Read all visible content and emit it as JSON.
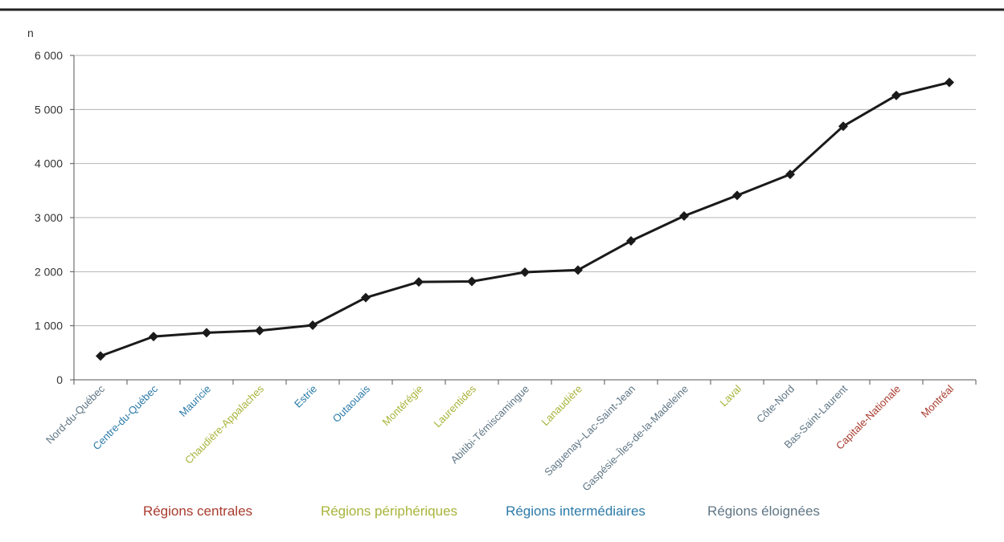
{
  "chart_data": {
    "type": "line",
    "title": "",
    "xlabel": "",
    "ylabel": "n",
    "ylim": [
      0,
      6000
    ],
    "yticks": [
      {
        "value": 0,
        "label": "0"
      },
      {
        "value": 1000,
        "label": "1 000"
      },
      {
        "value": 2000,
        "label": "2 000"
      },
      {
        "value": 3000,
        "label": "3 000"
      },
      {
        "value": 4000,
        "label": "4 000"
      },
      {
        "value": 5000,
        "label": "5 000"
      },
      {
        "value": 6000,
        "label": "6 000"
      }
    ],
    "grid": true,
    "line_color": "#1a1a1a",
    "categories": [
      {
        "label": "Nord-du-Québec",
        "group": "eloignees"
      },
      {
        "label": "Centre-du-Québec",
        "group": "intermediaires"
      },
      {
        "label": "Mauricie",
        "group": "intermediaires"
      },
      {
        "label": "Chaudière-Appalaches",
        "group": "peripheriques"
      },
      {
        "label": "Estrie",
        "group": "intermediaires"
      },
      {
        "label": "Outaouais",
        "group": "intermediaires"
      },
      {
        "label": "Montérégie",
        "group": "peripheriques"
      },
      {
        "label": "Laurentides",
        "group": "peripheriques"
      },
      {
        "label": "Abitibi-Témiscamingue",
        "group": "eloignees"
      },
      {
        "label": "Lanaudière",
        "group": "peripheriques"
      },
      {
        "label": "Saguenay–Lac-Saint-Jean",
        "group": "eloignees"
      },
      {
        "label": "Gaspésie–Îles-de-la-Madeleine",
        "group": "eloignees"
      },
      {
        "label": "Laval",
        "group": "peripheriques"
      },
      {
        "label": "Côte-Nord",
        "group": "eloignees"
      },
      {
        "label": "Bas-Saint-Laurent",
        "group": "eloignees"
      },
      {
        "label": "Capitale-Nationale",
        "group": "centrales"
      },
      {
        "label": "Montréal",
        "group": "centrales"
      }
    ],
    "values": [
      440,
      800,
      870,
      910,
      1010,
      1520,
      1810,
      1820,
      1990,
      2030,
      2570,
      3030,
      3410,
      3800,
      4690,
      5260,
      5500
    ],
    "groups": [
      {
        "id": "centrales",
        "label": "Régions centrales",
        "color": "#a83b2e"
      },
      {
        "id": "peripheriques",
        "label": "Régions périphériques",
        "color": "#a8b43a"
      },
      {
        "id": "intermediaires",
        "label": "Régions intermédiaires",
        "color": "#2b7aa8"
      },
      {
        "id": "eloignees",
        "label": "Régions éloignées",
        "color": "#5f7685"
      }
    ]
  }
}
